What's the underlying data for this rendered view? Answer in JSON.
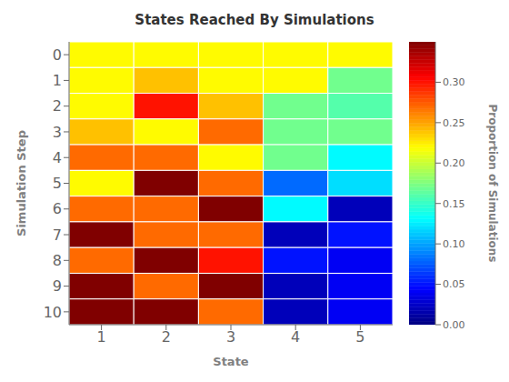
{
  "chart_data": {
    "type": "heatmap",
    "title": "States Reached By Simulations",
    "x_label": "State",
    "y_label": "Simulation Step",
    "xlim": [
      0.5,
      5.5
    ],
    "xticks": [
      1,
      2,
      3,
      4,
      5
    ],
    "ylim": [
      10.5,
      -0.5
    ],
    "yticks": [
      0,
      1,
      2,
      3,
      4,
      5,
      6,
      7,
      8,
      9,
      10
    ],
    "values": [
      [
        0.22,
        0.22,
        0.22,
        0.22,
        0.22
      ],
      [
        0.22,
        0.24,
        0.22,
        0.22,
        0.17
      ],
      [
        0.22,
        0.3,
        0.24,
        0.17,
        0.16
      ],
      [
        0.24,
        0.22,
        0.27,
        0.17,
        0.17
      ],
      [
        0.27,
        0.27,
        0.22,
        0.17,
        0.13
      ],
      [
        0.22,
        0.35,
        0.27,
        0.08,
        0.12
      ],
      [
        0.27,
        0.27,
        0.35,
        0.13,
        0.02
      ],
      [
        0.35,
        0.27,
        0.27,
        0.02,
        0.05
      ],
      [
        0.27,
        0.35,
        0.3,
        0.05,
        0.04
      ],
      [
        0.35,
        0.27,
        0.35,
        0.02,
        0.04
      ],
      [
        0.35,
        0.35,
        0.27,
        0.02,
        0.04
      ]
    ],
    "colorbar_label": "Proportion of Simulations",
    "colorbar_range": [
      0,
      0.35
    ],
    "colorbar_ticks": [
      {
        "value": 0,
        "label": "0.00"
      },
      {
        "value": 0.05,
        "label": "0.05"
      },
      {
        "value": 0.1,
        "label": "0.10"
      },
      {
        "value": 0.15,
        "label": "0.15"
      },
      {
        "value": 0.2,
        "label": "0.20"
      },
      {
        "value": 0.25,
        "label": "0.25"
      },
      {
        "value": 0.3,
        "label": "0.30"
      }
    ],
    "grid": true
  }
}
